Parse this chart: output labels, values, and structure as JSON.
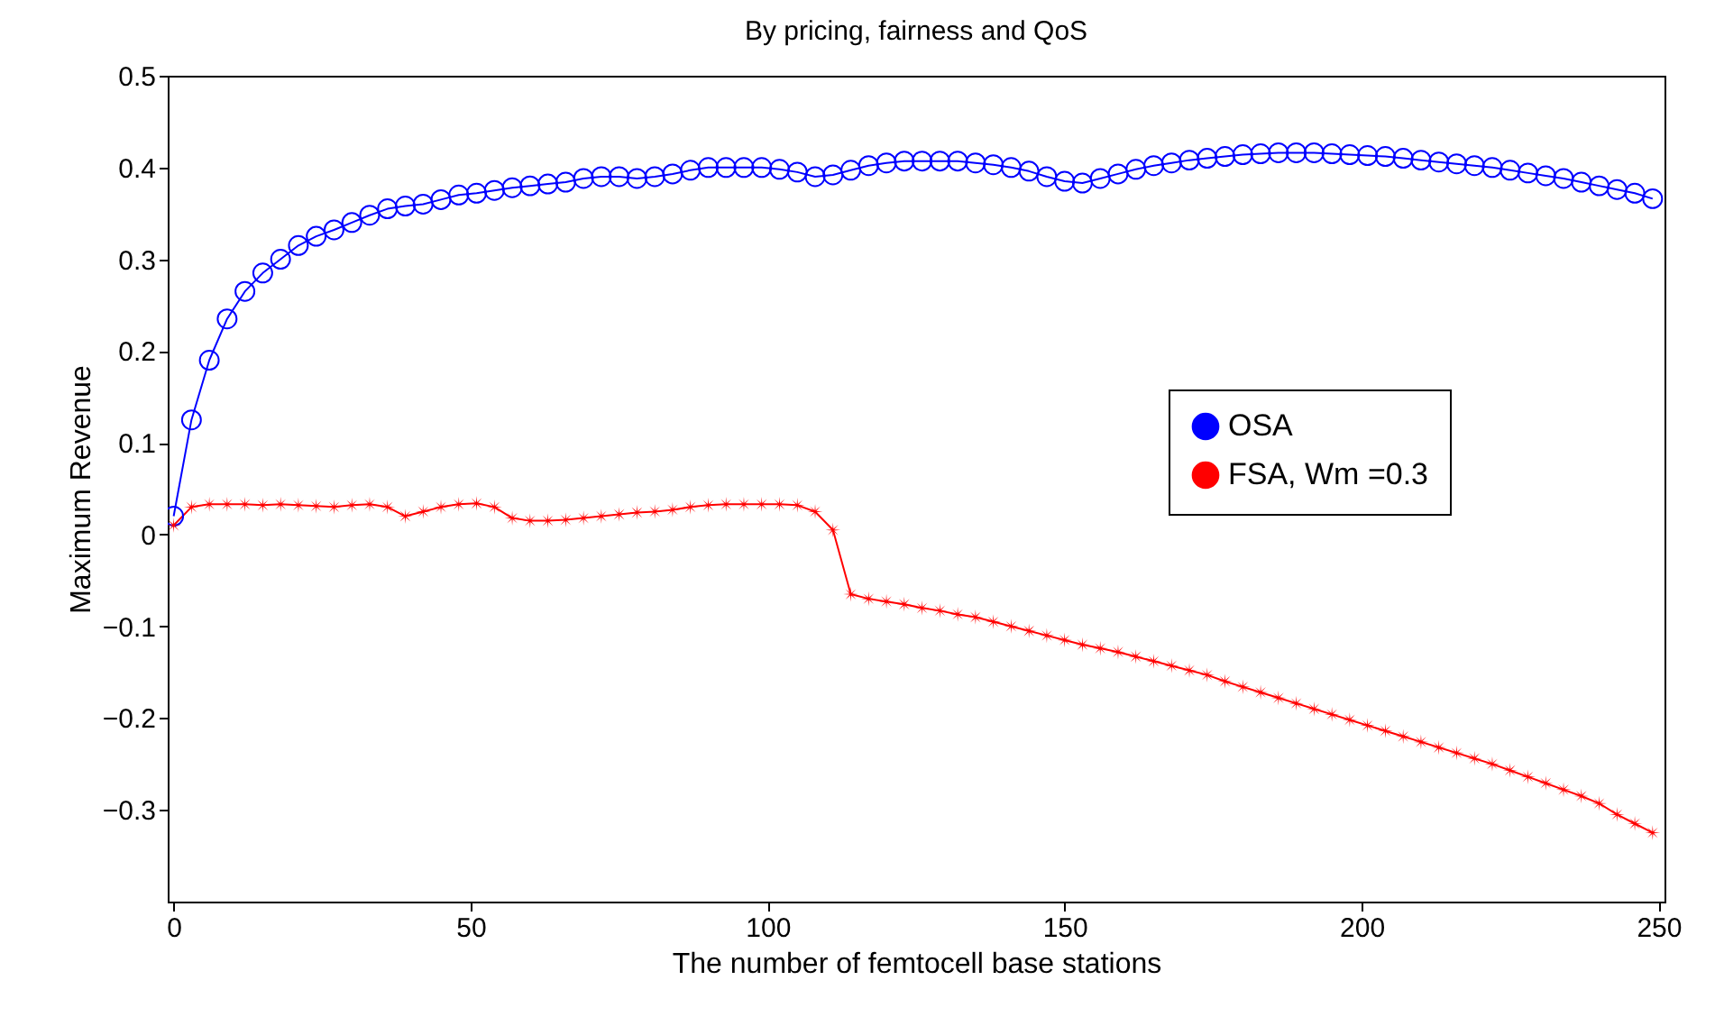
{
  "chart_data": {
    "type": "line",
    "title": "By pricing, fairness and QoS",
    "xlabel": "The number of femtocell base stations",
    "ylabel": "Maximum Revenue",
    "x": [
      0,
      3,
      6,
      9,
      12,
      15,
      18,
      21,
      24,
      27,
      30,
      33,
      36,
      39,
      42,
      45,
      48,
      51,
      54,
      57,
      60,
      63,
      66,
      69,
      72,
      75,
      78,
      81,
      84,
      87,
      90,
      93,
      96,
      99,
      102,
      105,
      108,
      111,
      114,
      117,
      120,
      123,
      126,
      129,
      132,
      135,
      138,
      141,
      144,
      147,
      150,
      153,
      156,
      159,
      162,
      165,
      168,
      171,
      174,
      177,
      180,
      183,
      186,
      189,
      192,
      195,
      198,
      201,
      204,
      207,
      210,
      213,
      216,
      219,
      222,
      225,
      228,
      231,
      234,
      237,
      240,
      243,
      246,
      249
    ],
    "series": [
      {
        "name": "OSA",
        "color": "#0000ff",
        "marker": "circle",
        "values": [
          0.02,
          0.125,
          0.19,
          0.235,
          0.265,
          0.285,
          0.3,
          0.315,
          0.325,
          0.332,
          0.34,
          0.348,
          0.355,
          0.358,
          0.36,
          0.365,
          0.37,
          0.372,
          0.375,
          0.378,
          0.38,
          0.382,
          0.384,
          0.388,
          0.39,
          0.39,
          0.388,
          0.39,
          0.393,
          0.397,
          0.4,
          0.4,
          0.4,
          0.4,
          0.398,
          0.395,
          0.39,
          0.392,
          0.397,
          0.402,
          0.405,
          0.407,
          0.407,
          0.407,
          0.407,
          0.405,
          0.403,
          0.4,
          0.396,
          0.39,
          0.385,
          0.383,
          0.388,
          0.393,
          0.398,
          0.402,
          0.405,
          0.408,
          0.41,
          0.412,
          0.414,
          0.415,
          0.416,
          0.416,
          0.416,
          0.415,
          0.414,
          0.413,
          0.412,
          0.41,
          0.408,
          0.406,
          0.404,
          0.402,
          0.4,
          0.397,
          0.394,
          0.391,
          0.388,
          0.384,
          0.38,
          0.376,
          0.372,
          0.366
        ]
      },
      {
        "name": "FSA, Wm =0.3",
        "color": "#ff0000",
        "marker": "star",
        "values": [
          0.01,
          0.03,
          0.033,
          0.033,
          0.033,
          0.032,
          0.033,
          0.032,
          0.031,
          0.03,
          0.032,
          0.033,
          0.03,
          0.02,
          0.025,
          0.03,
          0.033,
          0.034,
          0.03,
          0.018,
          0.015,
          0.015,
          0.016,
          0.018,
          0.02,
          0.022,
          0.024,
          0.025,
          0.027,
          0.03,
          0.032,
          0.033,
          0.033,
          0.033,
          0.033,
          0.032,
          0.025,
          0.005,
          -0.065,
          -0.07,
          -0.073,
          -0.076,
          -0.08,
          -0.083,
          -0.087,
          -0.09,
          -0.095,
          -0.1,
          -0.105,
          -0.11,
          -0.115,
          -0.12,
          -0.124,
          -0.128,
          -0.133,
          -0.138,
          -0.143,
          -0.148,
          -0.153,
          -0.16,
          -0.166,
          -0.172,
          -0.178,
          -0.184,
          -0.19,
          -0.196,
          -0.202,
          -0.208,
          -0.214,
          -0.22,
          -0.226,
          -0.232,
          -0.238,
          -0.244,
          -0.25,
          -0.257,
          -0.264,
          -0.271,
          -0.278,
          -0.285,
          -0.293,
          -0.305,
          -0.315,
          -0.325
        ]
      }
    ],
    "xlim": [
      -1,
      251
    ],
    "xticks": [
      0,
      50,
      100,
      150,
      200,
      250
    ],
    "ylim": [
      -0.4,
      0.5
    ],
    "yticks": [
      -0.3,
      -0.2,
      -0.1,
      0,
      0.1,
      0.2,
      0.3,
      0.4,
      0.5
    ],
    "legend": "right",
    "line_style": "solid"
  }
}
